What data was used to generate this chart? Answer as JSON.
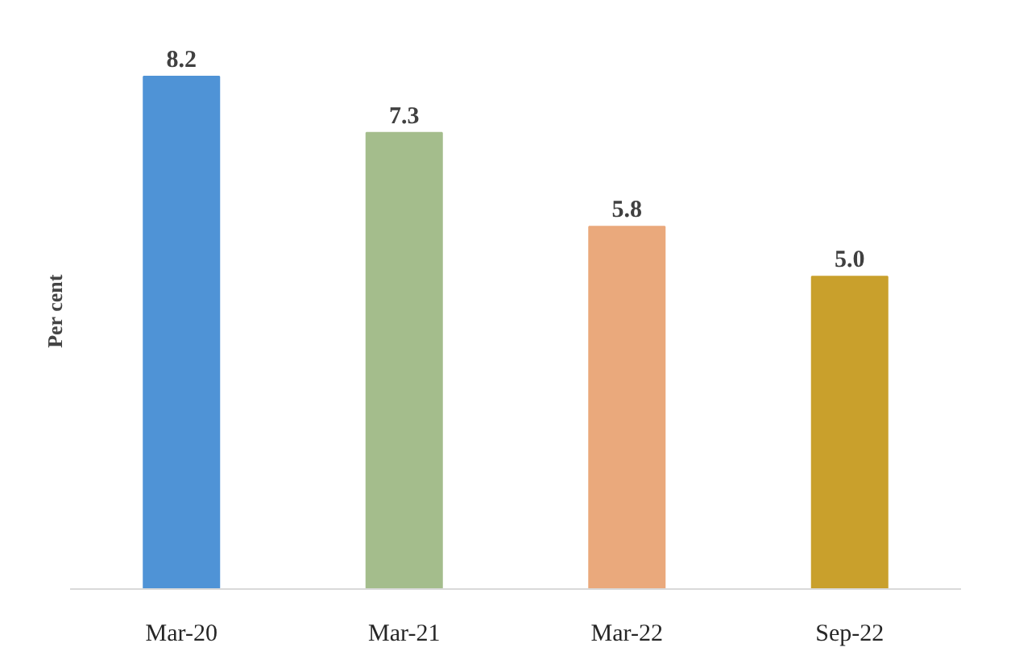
{
  "chart_data": {
    "type": "bar",
    "ylabel": "Per cent",
    "categories": [
      "Mar-20",
      "Mar-21",
      "Mar-22",
      "Sep-22"
    ],
    "values": [
      8.2,
      7.3,
      5.8,
      5.0
    ],
    "value_labels": [
      "8.2",
      "7.3",
      "5.8",
      "5.0"
    ],
    "colors": [
      "#4f93d6",
      "#a4bd8c",
      "#eaa97c",
      "#c9a02c"
    ],
    "grid": false
  }
}
